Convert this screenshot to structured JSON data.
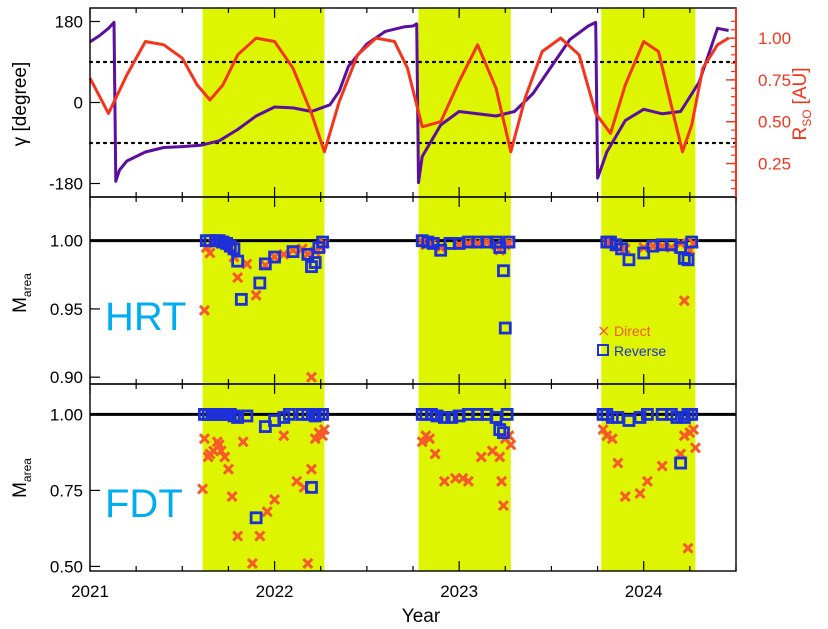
{
  "chart_data": [
    {
      "panel": "orbit",
      "type": "line",
      "xlabel": "",
      "ylabel": "γ [degree]",
      "ylabel_right": "R",
      "ylabel_right_sub": "SO",
      "ylabel_right_unit": "[AU]",
      "xlim": [
        2021.0,
        2024.5
      ],
      "ylim": [
        -210,
        210
      ],
      "ylim_right": [
        0.05,
        1.18
      ],
      "yticks": [
        180,
        0,
        -180
      ],
      "ytick_labels": [
        "180",
        "0",
        "-180"
      ],
      "yticks_right": [
        1.0,
        0.75,
        0.5,
        0.25
      ],
      "ytick_labels_right": [
        "1.00",
        "0.75",
        "0.50",
        "0.25"
      ],
      "reference_lines": [
        90,
        -90
      ],
      "shaded_intervals": [
        [
          2021.61,
          2022.27
        ],
        [
          2022.78,
          2023.28
        ],
        [
          2023.77,
          2024.28
        ]
      ],
      "colors": {
        "gamma": "#5b0f9e",
        "rso": "#f5341c",
        "shade": "#ddf500",
        "right_axis": "#f5341c"
      },
      "series": [
        {
          "key": "gamma",
          "axis": "left",
          "x": [
            2021.0,
            2021.05,
            2021.1,
            2021.13,
            2021.14,
            2021.16,
            2021.2,
            2021.3,
            2021.4,
            2021.5,
            2021.6,
            2021.7,
            2021.8,
            2021.9,
            2022.0,
            2022.1,
            2022.2,
            2022.3,
            2022.35,
            2022.4,
            2022.5,
            2022.6,
            2022.7,
            2022.75,
            2022.77,
            2022.78,
            2022.8,
            2022.9,
            2023.0,
            2023.1,
            2023.2,
            2023.3,
            2023.4,
            2023.5,
            2023.6,
            2023.7,
            2023.74,
            2023.75,
            2023.8,
            2023.9,
            2024.0,
            2024.1,
            2024.2,
            2024.3,
            2024.4,
            2024.46
          ],
          "y": [
            135,
            148,
            165,
            178,
            -175,
            -150,
            -130,
            -110,
            -100,
            -98,
            -95,
            -85,
            -60,
            -30,
            -10,
            -12,
            -20,
            -5,
            25,
            80,
            130,
            158,
            168,
            170,
            175,
            -178,
            -120,
            -50,
            -20,
            -25,
            -30,
            -20,
            20,
            80,
            140,
            170,
            178,
            -168,
            -110,
            -40,
            -15,
            -25,
            -20,
            45,
            165,
            160
          ]
        },
        {
          "key": "rso",
          "axis": "right",
          "x": [
            2021.0,
            2021.1,
            2021.2,
            2021.3,
            2021.4,
            2021.5,
            2021.58,
            2021.65,
            2021.72,
            2021.8,
            2021.9,
            2022.0,
            2022.1,
            2022.2,
            2022.27,
            2022.35,
            2022.45,
            2022.55,
            2022.65,
            2022.72,
            2022.8,
            2022.9,
            2023.0,
            2023.1,
            2023.2,
            2023.28,
            2023.36,
            2023.45,
            2023.55,
            2023.65,
            2023.74,
            2023.82,
            2023.9,
            2024.0,
            2024.08,
            2024.16,
            2024.21,
            2024.26,
            2024.32,
            2024.4,
            2024.46
          ],
          "y": [
            0.76,
            0.55,
            0.78,
            0.98,
            0.96,
            0.88,
            0.72,
            0.63,
            0.72,
            0.9,
            1.0,
            0.98,
            0.82,
            0.55,
            0.32,
            0.62,
            0.9,
            1.0,
            0.98,
            0.82,
            0.47,
            0.5,
            0.74,
            0.96,
            0.7,
            0.32,
            0.65,
            0.92,
            1.0,
            0.9,
            0.55,
            0.43,
            0.72,
            0.98,
            0.92,
            0.55,
            0.32,
            0.48,
            0.82,
            0.96,
            1.0
          ]
        }
      ]
    },
    {
      "panel": "hrt",
      "type": "scatter",
      "label": "HRT",
      "xlabel": "",
      "ylabel": "M",
      "ylabel_sub": "area",
      "xlim": [
        2021.0,
        2024.5
      ],
      "ylim": [
        0.895,
        1.032
      ],
      "yticks": [
        1.0,
        0.95,
        0.9
      ],
      "ytick_labels": [
        "1.00",
        "0.95",
        "0.90"
      ],
      "reference_lines": [
        1.0
      ],
      "legend": {
        "position": "lower-right",
        "entries": [
          "Direct",
          "Reverse"
        ]
      },
      "colors": {
        "direct": "#f7592a",
        "reverse": "#1c30d9",
        "label": "#00aef0"
      },
      "series": [
        {
          "name": "Direct",
          "x": [
            2021.62,
            2021.63,
            2021.65,
            2021.67,
            2021.7,
            2021.72,
            2021.74,
            2021.76,
            2021.78,
            2021.8,
            2021.85,
            2021.9,
            2021.95,
            2022.0,
            2022.05,
            2022.1,
            2022.15,
            2022.18,
            2022.2,
            2022.22,
            2022.25,
            2022.27,
            2022.8,
            2022.82,
            2022.85,
            2022.9,
            2023.0,
            2023.05,
            2023.1,
            2023.15,
            2023.2,
            2023.22,
            2023.25,
            2023.27,
            2023.8,
            2023.82,
            2023.85,
            2023.9,
            2024.0,
            2024.05,
            2024.1,
            2024.15,
            2024.2,
            2024.22,
            2024.25,
            2024.27
          ],
          "y": [
            0.949,
            0.995,
            0.991,
            0.998,
            1.0,
            0.999,
            0.997,
            0.995,
            0.988,
            0.973,
            0.983,
            0.96,
            0.982,
            0.988,
            0.99,
            0.993,
            0.994,
            0.99,
            0.9,
            0.992,
            0.995,
            0.998,
            0.999,
            0.997,
            0.998,
            0.995,
            0.997,
            0.998,
            0.998,
            0.999,
            0.997,
            0.993,
            0.997,
            0.998,
            0.999,
            0.998,
            0.996,
            0.994,
            0.995,
            0.996,
            0.996,
            0.995,
            0.998,
            0.956,
            0.993,
            0.998
          ]
        },
        {
          "name": "Reverse",
          "x": [
            2021.63,
            2021.65,
            2021.68,
            2021.7,
            2021.72,
            2021.74,
            2021.76,
            2021.78,
            2021.8,
            2021.82,
            2021.92,
            2021.95,
            2022.0,
            2022.1,
            2022.18,
            2022.2,
            2022.22,
            2022.24,
            2022.26,
            2022.8,
            2022.83,
            2022.86,
            2022.9,
            2022.95,
            2023.0,
            2023.05,
            2023.1,
            2023.15,
            2023.2,
            2023.22,
            2023.24,
            2023.25,
            2023.27,
            2023.8,
            2023.82,
            2023.85,
            2023.88,
            2023.92,
            2024.0,
            2024.05,
            2024.1,
            2024.15,
            2024.2,
            2024.22,
            2024.24,
            2024.26
          ],
          "y": [
            1.0,
            1.0,
            1.0,
            1.0,
            0.999,
            0.998,
            0.996,
            0.994,
            0.985,
            0.957,
            0.969,
            0.983,
            0.988,
            0.992,
            0.99,
            0.981,
            0.984,
            0.995,
            0.999,
            1.0,
            0.999,
            0.998,
            0.993,
            0.998,
            0.998,
            0.999,
            0.999,
            0.999,
            0.999,
            0.995,
            0.978,
            0.936,
            0.999,
            0.999,
            0.999,
            0.997,
            0.994,
            0.986,
            0.991,
            0.996,
            0.997,
            0.997,
            0.995,
            0.987,
            0.986,
            0.999
          ]
        }
      ]
    },
    {
      "panel": "fdt",
      "type": "scatter",
      "label": "FDT",
      "xlabel": "Year",
      "ylabel": "M",
      "ylabel_sub": "area",
      "xlim": [
        2021.0,
        2024.5
      ],
      "ylim": [
        0.485,
        1.1
      ],
      "yticks": [
        1.0,
        0.75,
        0.5
      ],
      "ytick_labels": [
        "1.00",
        "0.75",
        "0.50"
      ],
      "xticks": [
        2021,
        2022,
        2023,
        2024
      ],
      "xtick_labels": [
        "2021",
        "2022",
        "2023",
        "2024"
      ],
      "reference_lines": [
        1.0
      ],
      "colors": {
        "direct": "#f7592a",
        "reverse": "#1c30d9",
        "label": "#00aef0"
      },
      "series": [
        {
          "name": "Direct",
          "x": [
            2021.61,
            2021.62,
            2021.64,
            2021.65,
            2021.67,
            2021.69,
            2021.7,
            2021.71,
            2021.73,
            2021.75,
            2021.77,
            2021.8,
            2021.83,
            2021.88,
            2021.92,
            2021.96,
            2022.0,
            2022.05,
            2022.12,
            2022.16,
            2022.18,
            2022.2,
            2022.22,
            2022.24,
            2022.26,
            2022.27,
            2022.8,
            2022.82,
            2022.84,
            2022.87,
            2022.92,
            2022.98,
            2023.02,
            2023.05,
            2023.12,
            2023.18,
            2023.22,
            2023.23,
            2023.24,
            2023.25,
            2023.27,
            2023.28,
            2023.78,
            2023.8,
            2023.83,
            2023.86,
            2023.9,
            2023.98,
            2024.02,
            2024.1,
            2024.2,
            2024.22,
            2024.24,
            2024.25,
            2024.27,
            2024.28
          ],
          "y": [
            0.755,
            0.92,
            0.86,
            0.87,
            0.88,
            0.91,
            0.9,
            0.88,
            0.86,
            0.82,
            0.73,
            0.6,
            0.91,
            0.51,
            0.6,
            0.68,
            0.72,
            0.93,
            0.78,
            0.76,
            0.51,
            0.82,
            0.92,
            0.94,
            0.93,
            0.95,
            0.91,
            0.93,
            0.92,
            0.87,
            0.78,
            0.79,
            0.79,
            0.78,
            0.86,
            0.88,
            0.86,
            0.78,
            0.7,
            0.92,
            0.93,
            0.9,
            0.95,
            0.93,
            0.92,
            0.84,
            0.73,
            0.74,
            0.78,
            0.83,
            0.87,
            0.93,
            0.56,
            0.94,
            0.95,
            0.89
          ]
        },
        {
          "name": "Reverse",
          "x": [
            2021.62,
            2021.64,
            2021.66,
            2021.68,
            2021.7,
            2021.72,
            2021.74,
            2021.76,
            2021.78,
            2021.8,
            2021.85,
            2021.9,
            2021.95,
            2022.0,
            2022.05,
            2022.08,
            2022.15,
            2022.18,
            2022.2,
            2022.22,
            2022.24,
            2022.26,
            2022.8,
            2022.82,
            2022.85,
            2022.88,
            2022.92,
            2022.96,
            2023.0,
            2023.05,
            2023.1,
            2023.15,
            2023.2,
            2023.22,
            2023.24,
            2023.26,
            2023.78,
            2023.8,
            2023.83,
            2023.86,
            2023.92,
            2023.98,
            2024.02,
            2024.1,
            2024.15,
            2024.18,
            2024.2,
            2024.22,
            2024.24,
            2024.26
          ],
          "y": [
            1.0,
            1.0,
            1.0,
            1.0,
            1.0,
            1.0,
            1.0,
            1.0,
            0.995,
            0.99,
            0.995,
            0.66,
            0.96,
            0.98,
            0.99,
            1.0,
            1.0,
            1.0,
            0.76,
            0.995,
            1.0,
            1.0,
            1.0,
            1.0,
            1.0,
            0.995,
            0.99,
            0.99,
            0.995,
            1.0,
            1.0,
            1.0,
            0.99,
            0.95,
            0.94,
            1.0,
            1.0,
            1.0,
            0.99,
            0.99,
            0.98,
            0.99,
            1.0,
            1.0,
            1.0,
            0.99,
            0.84,
            0.99,
            1.0,
            1.0
          ]
        }
      ]
    }
  ]
}
